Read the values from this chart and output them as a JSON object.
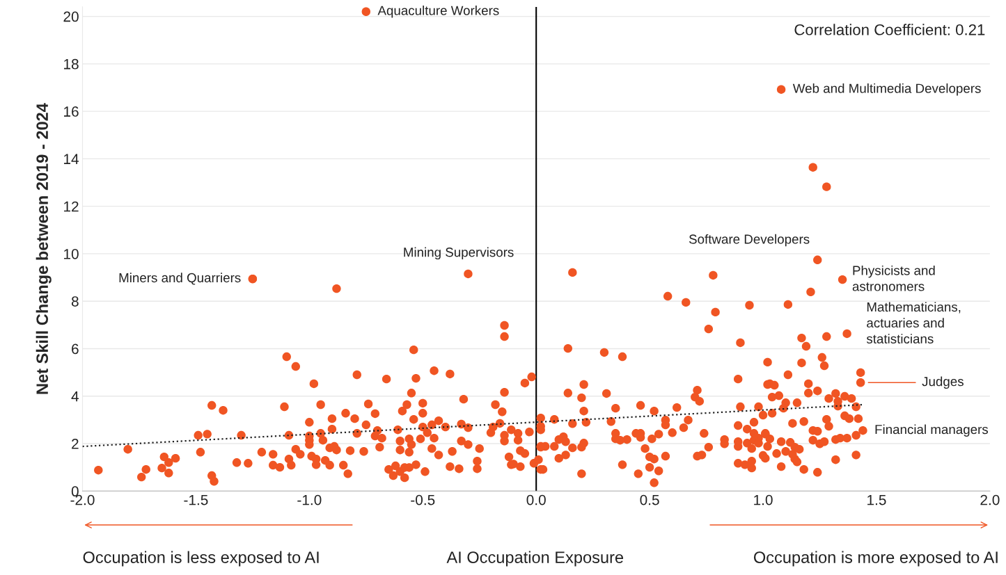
{
  "chart_data": {
    "type": "scatter",
    "ylabel": "Net Skill Change between 2019 - 2024",
    "xlabel": "AI Occupation Exposure",
    "xlim": [
      -2.0,
      2.0
    ],
    "xticks": [
      {
        "value": -2.0,
        "label": "-2.0"
      },
      {
        "value": -1.5,
        "label": "-1.5"
      },
      {
        "value": -1.0,
        "label": "-1.0"
      },
      {
        "value": -0.5,
        "label": "-0.5"
      },
      {
        "value": 0.0,
        "label": "0.0"
      },
      {
        "value": 0.5,
        "label": "0.5"
      },
      {
        "value": 1.0,
        "label": "1.0"
      },
      {
        "value": 1.5,
        "label": "1.5"
      },
      {
        "value": 2.0,
        "label": "2.0"
      }
    ],
    "ylim": [
      0,
      20.4
    ],
    "yticks": [
      0,
      2,
      4,
      6,
      8,
      10,
      12,
      14,
      16,
      18,
      20
    ],
    "grid": "y",
    "marker": "circle",
    "ref_lines": [
      {
        "axis": "x",
        "value": 0,
        "color": "#000000"
      }
    ],
    "annotations": [
      "Correlation Coefficient: 0.21",
      "Occupation is less exposed to AI",
      "Occupation is more exposed to AI",
      "Judges",
      {
        "text": "Aquaculture Workers",
        "x": -0.75,
        "y": 20.2
      },
      {
        "text": "Web and Multimedia Developers",
        "x": 1.08,
        "y": 16.92
      },
      {
        "text": "Software Developers",
        "x": 1.24,
        "y": 9.74
      },
      {
        "text": "Physicists and\nastronomers",
        "x": 1.35,
        "y": 8.91
      },
      {
        "text": "Mathematicians,\nactuaries and\nstatisticians",
        "x": 1.37,
        "y": 6.63
      },
      {
        "text": "Financial managers",
        "x": 1.44,
        "y": 2.55
      },
      {
        "text": "Mining Supervisors",
        "x": -0.3,
        "y": 9.15
      },
      {
        "text": "Miners and Quarriers",
        "x": -1.25,
        "y": 8.94
      }
    ],
    "series": [
      {
        "color": "#f05523",
        "x": [
          -1.93,
          -1.8,
          -1.74,
          -1.72,
          -1.65,
          -1.64,
          -1.62,
          -1.62,
          -1.59,
          -1.49,
          -1.48,
          -1.45,
          -1.43,
          -1.43,
          -1.42,
          -1.38,
          -1.3,
          -1.32,
          -1.27,
          -1.25,
          -1.21,
          -1.16,
          -1.16,
          -1.13,
          -1.11,
          -1.1,
          -1.09,
          -1.09,
          -1.08,
          -1.06,
          -1.06,
          -1.04,
          -1.0,
          -1.0,
          -1.0,
          -1.0,
          -0.98,
          -0.95,
          -0.95,
          -0.94,
          -0.99,
          -0.97,
          -0.97,
          -0.93,
          -0.91,
          -0.91,
          -0.89,
          -0.88,
          -0.9,
          -0.9,
          -0.84,
          -0.79,
          -0.8,
          -0.79,
          -0.82,
          -0.85,
          -0.83,
          -0.76,
          -0.75,
          -0.74,
          -0.71,
          -0.7,
          -0.71,
          -0.68,
          -0.69,
          -0.66,
          -0.65,
          -0.62,
          -0.63,
          -0.6,
          -0.58,
          -0.58,
          -0.56,
          -0.53,
          -0.49,
          -0.61,
          -0.6,
          -0.6,
          -0.56,
          -0.56,
          -0.55,
          -0.59,
          -0.57,
          -0.55,
          -0.54,
          -0.53,
          -0.54,
          -0.51,
          -0.5,
          -0.5,
          -0.5,
          -0.48,
          -0.46,
          -0.46,
          -0.45,
          -0.45,
          -0.43,
          -0.43,
          -0.4,
          -0.38,
          -0.38,
          -0.37,
          -0.34,
          -0.33,
          -0.32,
          -0.33,
          -0.3,
          -0.3,
          -0.26,
          -0.26,
          -0.25,
          -0.2,
          -0.19,
          -0.18,
          -0.16,
          -0.15,
          -0.14,
          -0.14,
          -0.14,
          -0.14,
          -0.14,
          -0.11,
          -0.08,
          -0.08,
          -0.12,
          -0.11,
          -0.1,
          -0.07,
          -0.07,
          -0.05,
          -0.05,
          -0.02,
          -0.03,
          -0.01,
          0.01,
          0.02,
          0.02,
          0.02,
          0.02,
          -0.3,
          -1.25,
          -0.75,
          -0.88,
          0.58,
          0.66,
          0.79,
          0.76,
          0.94,
          0.9,
          0.78,
          0.14,
          0.3,
          0.38,
          0.14,
          0.21,
          0.2,
          0.21,
          0.22,
          0.16,
          0.08,
          0.02,
          0.31,
          0.35,
          0.33,
          0.46,
          0.52,
          0.62,
          0.57,
          0.57,
          0.67,
          0.65,
          0.71,
          0.7,
          0.72,
          0.6,
          0.54,
          0.51,
          0.46,
          0.46,
          0.44,
          0.4,
          0.37,
          0.35,
          0.35,
          0.74,
          0.76,
          0.71,
          0.73,
          0.48,
          0.5,
          0.52,
          0.5,
          0.54,
          0.52,
          0.45,
          0.57,
          0.38,
          0.2,
          0.21,
          0.2,
          0.16,
          0.13,
          0.12,
          0.1,
          0.08,
          0.04,
          0.02,
          0.13,
          0.1,
          0.03,
          0.83,
          0.83,
          0.89,
          0.89,
          0.89,
          0.89,
          0.9,
          0.92,
          0.95,
          0.95,
          0.93,
          0.93,
          0.96,
          0.98,
          1.0,
          0.96,
          0.98,
          0.95,
          1.0,
          1.01,
          1.02,
          1.02,
          1.01,
          1.02,
          1.24,
          1.35,
          1.21,
          1.11,
          1.17,
          1.19,
          1.28,
          1.37,
          1.26,
          1.27,
          1.17,
          0.89,
          1.11,
          1.43,
          1.43,
          1.03,
          1.05,
          1.2,
          1.2,
          1.24,
          1.07,
          1.04,
          1.1,
          1.09,
          1.15,
          1.04,
          1.32,
          1.29,
          1.36,
          1.39,
          1.33,
          1.33,
          1.41,
          1.36,
          1.38,
          1.42,
          1.28,
          1.29,
          1.13,
          1.18,
          1.22,
          1.24,
          1.44,
          1.41,
          1.01,
          1.03,
          1.08,
          1.12,
          1.14,
          1.16,
          1.22,
          1.25,
          1.27,
          1.32,
          1.34,
          1.37,
          1.1,
          1.06,
          1.13,
          1.14,
          1.15,
          1.32,
          1.41,
          1.08,
          1.18,
          1.24,
          0.96,
          0.98,
          1.08,
          1.22,
          1.28,
          0.16
        ],
        "values": [
          0.88,
          1.76,
          0.59,
          0.91,
          0.97,
          1.44,
          1.2,
          0.76,
          1.38,
          2.35,
          1.64,
          2.4,
          3.61,
          0.65,
          0.41,
          3.4,
          2.35,
          1.2,
          1.17,
          8.94,
          1.64,
          1.09,
          1.55,
          1.0,
          3.55,
          5.66,
          2.35,
          1.35,
          1.09,
          5.25,
          1.76,
          1.55,
          2.14,
          2.9,
          2.32,
          1.96,
          4.52,
          3.64,
          2.43,
          2.14,
          1.47,
          1.35,
          1.11,
          1.29,
          1.09,
          1.82,
          1.88,
          1.73,
          2.61,
          3.05,
          3.28,
          4.9,
          3.05,
          2.43,
          1.7,
          1.09,
          0.73,
          1.67,
          2.79,
          3.67,
          3.26,
          2.55,
          2.32,
          2.23,
          1.85,
          4.72,
          0.91,
          1.06,
          0.65,
          0.82,
          0.99,
          0.56,
          0.99,
          1.11,
          0.82,
          2.58,
          2.11,
          1.73,
          1.64,
          2.2,
          1.96,
          3.37,
          3.64,
          4.13,
          5.95,
          4.75,
          3.02,
          2.2,
          3.28,
          3.7,
          2.7,
          2.46,
          2.79,
          1.79,
          2.23,
          5.07,
          2.96,
          1.52,
          2.7,
          4.93,
          1.03,
          1.67,
          0.94,
          2.82,
          3.87,
          2.11,
          2.67,
          1.96,
          1.26,
          0.94,
          1.79,
          2.46,
          2.7,
          3.64,
          2.85,
          3.34,
          4.16,
          6.98,
          6.51,
          2.35,
          2.11,
          2.58,
          2.43,
          2.14,
          1.44,
          1.11,
          1.14,
          1.03,
          1.7,
          1.58,
          4.55,
          4.81,
          2.49,
          1.17,
          1.32,
          3.08,
          2.73,
          1.88,
          0.91,
          9.15,
          8.94,
          20.2,
          8.53,
          8.21,
          7.95,
          7.54,
          6.83,
          7.83,
          6.25,
          9.09,
          6.01,
          5.84,
          5.66,
          4.13,
          4.49,
          3.93,
          3.37,
          2.9,
          2.84,
          3.02,
          2.58,
          4.11,
          3.49,
          2.93,
          3.61,
          3.37,
          3.52,
          2.99,
          2.79,
          2.99,
          2.67,
          4.25,
          3.96,
          3.78,
          2.46,
          2.4,
          2.2,
          2.43,
          2.26,
          2.43,
          2.17,
          2.14,
          2.43,
          2.2,
          2.43,
          1.85,
          1.47,
          1.52,
          1.79,
          1.44,
          1.35,
          1.0,
          0.85,
          0.35,
          0.73,
          1.47,
          1.11,
          0.73,
          2.02,
          1.85,
          1.82,
          2.08,
          2.29,
          2.17,
          1.88,
          1.88,
          1.85,
          1.52,
          1.38,
          0.91,
          2.17,
          1.99,
          2.76,
          1.88,
          2.08,
          1.17,
          3.55,
          1.11,
          1.26,
          0.97,
          2.02,
          2.61,
          2.9,
          3.55,
          3.2,
          2.43,
          2.23,
          1.79,
          1.5,
          1.38,
          5.43,
          4.49,
          2.43,
          1.88,
          9.74,
          8.91,
          8.39,
          7.86,
          6.45,
          6.1,
          6.51,
          6.63,
          5.63,
          5.28,
          5.4,
          4.72,
          4.9,
          4.99,
          4.57,
          4.52,
          4.46,
          4.52,
          4.13,
          4.22,
          4.02,
          3.96,
          3.72,
          3.49,
          3.72,
          3.28,
          4.11,
          3.9,
          3.99,
          3.9,
          3.78,
          3.58,
          3.55,
          3.17,
          3.05,
          3.05,
          3.02,
          2.73,
          2.85,
          2.93,
          2.55,
          2.52,
          2.55,
          2.35,
          2.4,
          2.2,
          2.08,
          2.05,
          1.85,
          1.76,
          2.14,
          1.99,
          2.08,
          2.17,
          2.23,
          2.23,
          1.67,
          1.58,
          1.55,
          1.35,
          1.23,
          1.32,
          1.52,
          1.03,
          0.91,
          0.79,
          2.14,
          2.02,
          16.92,
          13.64,
          12.82,
          9.21
        ]
      },
      {
        "type": "line",
        "color": "#222222",
        "line_style": "dotted",
        "marker": "none",
        "x": [
          -2.0,
          1.44
        ],
        "values": [
          1.88,
          3.64
        ]
      }
    ]
  }
}
